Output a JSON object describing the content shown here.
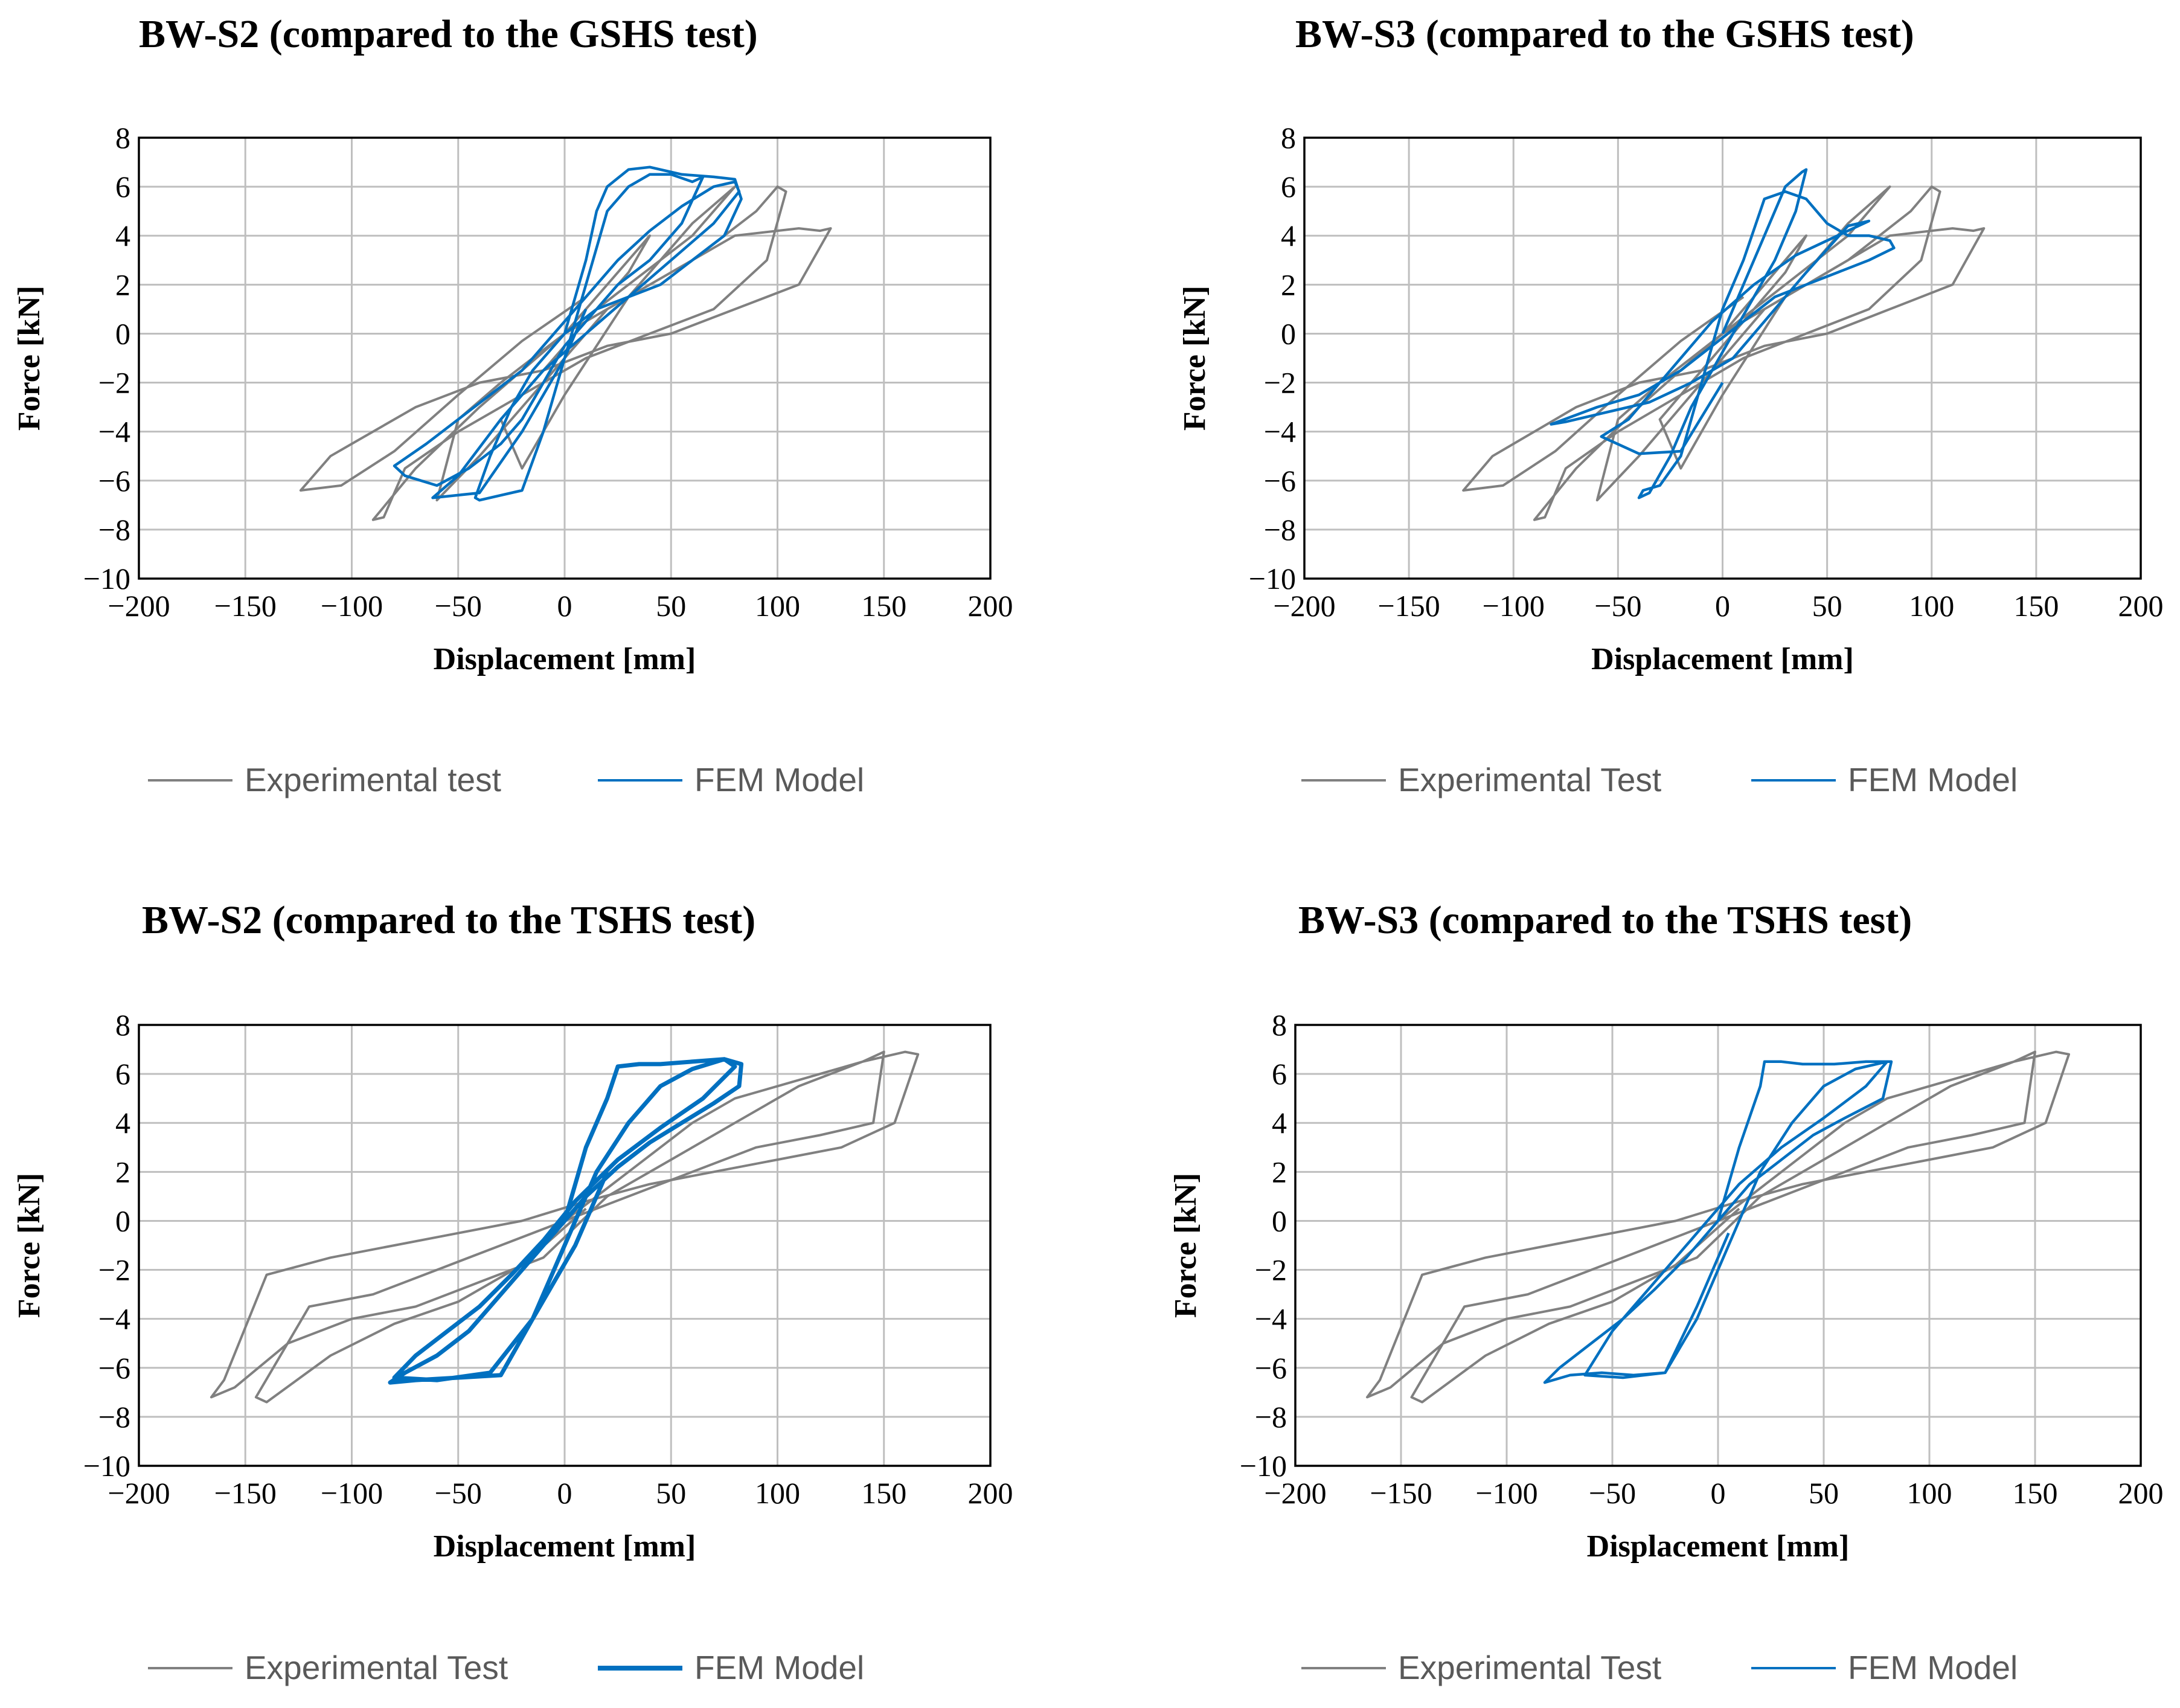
{
  "chart_data": [
    {
      "type": "line",
      "title": "BW-S2 (compared to the GSHS test)",
      "xlabel": "Displacement [mm]",
      "ylabel": "Force [kN]",
      "xlim": [
        -200,
        200
      ],
      "ylim": [
        -10,
        8
      ],
      "xticks": [
        "−200",
        "−150",
        "−100",
        "−50",
        "0",
        "50",
        "100",
        "150",
        "200"
      ],
      "yticks": [
        "8",
        "6",
        "4",
        "2",
        "0",
        "−2",
        "−4",
        "−6",
        "−8",
        "−10"
      ],
      "grid": true,
      "legend_position": "bottom",
      "series": [
        {
          "name": "Experimental test",
          "color": "#808080",
          "x": [
            0,
            20,
            40,
            30,
            10,
            -10,
            -30,
            -20,
            0,
            30,
            60,
            80,
            60,
            30,
            0,
            -30,
            -50,
            -60,
            -40,
            -10,
            20,
            60,
            90,
            100,
            104,
            95,
            70,
            40,
            10,
            -20,
            -50,
            -75,
            -85,
            -90,
            -70,
            -40,
            0,
            40,
            80,
            110,
            120,
            125,
            110,
            80,
            50,
            20,
            -10,
            -40,
            -70,
            -100,
            -110,
            -120,
            -124,
            -105,
            -80,
            -50,
            -20,
            10
          ],
          "y": [
            0,
            2,
            4,
            2.5,
            0.5,
            -1.5,
            -3.5,
            -5.5,
            -2.5,
            1.5,
            4.5,
            6,
            4,
            2,
            0,
            -2,
            -3.5,
            -6.8,
            -5,
            -2,
            1,
            3,
            5,
            6,
            5.8,
            3,
            1,
            0,
            -1,
            -2.5,
            -4,
            -5.5,
            -7.5,
            -7.6,
            -5.5,
            -3,
            0,
            2,
            4,
            4.3,
            4.2,
            4.3,
            2,
            1,
            0,
            -0.5,
            -1.5,
            -2,
            -3,
            -4.5,
            -5,
            -6,
            -6.4,
            -6.2,
            -4.8,
            -2.5,
            -0.3,
            1.5
          ]
        },
        {
          "name": "FEM Model",
          "color": "#0070c0",
          "x": [
            0,
            10,
            15,
            20,
            30,
            40,
            55,
            70,
            80,
            83,
            75,
            60,
            45,
            30,
            15,
            0,
            -15,
            -25,
            -35,
            -42,
            -40,
            -30,
            -20,
            -10,
            0,
            10,
            20,
            30,
            40,
            50,
            60,
            65,
            55,
            40,
            25,
            10,
            0,
            -10,
            -20,
            -30,
            -45,
            -60,
            -75,
            -80,
            -65,
            -50,
            -35,
            -20,
            -5,
            10,
            25,
            40,
            55,
            70,
            80,
            82,
            70,
            50,
            30,
            10,
            -10,
            -30,
            -50,
            -62,
            -40,
            -20,
            0,
            10
          ],
          "y": [
            0,
            3,
            5,
            6,
            6.7,
            6.8,
            6.5,
            6.4,
            6.3,
            5.5,
            4,
            3,
            2,
            1.5,
            1,
            0,
            -1.5,
            -3,
            -5,
            -6.7,
            -6.8,
            -6.6,
            -6.4,
            -4,
            -1,
            2,
            5,
            6,
            6.5,
            6.5,
            6.2,
            6.4,
            4.5,
            3,
            2,
            0.5,
            -0.5,
            -2,
            -3.5,
            -4.5,
            -5.5,
            -6.2,
            -5.8,
            -5.4,
            -4.5,
            -3.5,
            -2.5,
            -1.5,
            0,
            1.5,
            3,
            4.2,
            5.2,
            6,
            6.2,
            5.8,
            4.5,
            3,
            1.5,
            0,
            -1.5,
            -3.5,
            -5.8,
            -6.7,
            -6.5,
            -4,
            -1,
            1
          ]
        }
      ]
    },
    {
      "type": "line",
      "title": "BW-S3 (compared to the GSHS test)",
      "xlabel": "Displacement [mm]",
      "ylabel": "Force [kN]",
      "xlim": [
        -200,
        200
      ],
      "ylim": [
        -10,
        8
      ],
      "xticks": [
        "−200",
        "−150",
        "−100",
        "−50",
        "0",
        "50",
        "100",
        "150",
        "200"
      ],
      "yticks": [
        "8",
        "6",
        "4",
        "2",
        "0",
        "−2",
        "−4",
        "−6",
        "−8",
        "−10"
      ],
      "grid": true,
      "legend_position": "bottom",
      "series": [
        {
          "name": "Experimental Test",
          "color": "#808080",
          "x": [
            0,
            20,
            40,
            30,
            10,
            -10,
            -30,
            -20,
            0,
            30,
            60,
            80,
            60,
            30,
            0,
            -30,
            -50,
            -60,
            -40,
            -10,
            20,
            60,
            90,
            100,
            104,
            95,
            70,
            40,
            10,
            -20,
            -50,
            -75,
            -85,
            -90,
            -70,
            -40,
            0,
            40,
            80,
            110,
            120,
            125,
            110,
            80,
            50,
            20,
            -10,
            -40,
            -70,
            -100,
            -110,
            -120,
            -124,
            -105,
            -80,
            -50,
            -20,
            10
          ],
          "y": [
            0,
            2,
            4,
            2.5,
            0.5,
            -1.5,
            -3.5,
            -5.5,
            -2.5,
            1.5,
            4.5,
            6,
            4,
            2,
            0,
            -2,
            -3.5,
            -6.8,
            -5,
            -2,
            1,
            3,
            5,
            6,
            5.8,
            3,
            1,
            0,
            -1,
            -2.5,
            -4,
            -5.5,
            -7.5,
            -7.6,
            -5.5,
            -3,
            0,
            2,
            4,
            4.3,
            4.2,
            4.3,
            2,
            1,
            0,
            -0.5,
            -1.5,
            -2,
            -3,
            -4.5,
            -5,
            -6,
            -6.4,
            -6.2,
            -4.8,
            -2.5,
            -0.3,
            1.5
          ]
        },
        {
          "name": "FEM Model",
          "color": "#0070c0",
          "x": [
            0,
            10,
            20,
            30,
            38,
            40,
            35,
            25,
            15,
            5,
            -5,
            -15,
            -25,
            -35,
            -40,
            -38,
            -30,
            -20,
            -10,
            0,
            10,
            20,
            30,
            40,
            50,
            60,
            70,
            80,
            82,
            70,
            55,
            40,
            25,
            10,
            -5,
            -20,
            -40,
            -60,
            -82,
            -75,
            -55,
            -35,
            -15,
            5,
            20,
            40,
            60,
            70,
            55,
            35,
            15,
            -5,
            -25,
            -45,
            -58,
            -40,
            -20,
            0
          ],
          "y": [
            0,
            2,
            4,
            6,
            6.6,
            6.7,
            5,
            3,
            1.5,
            0,
            -1.5,
            -3,
            -5,
            -6.5,
            -6.7,
            -6.4,
            -6.2,
            -5,
            -2,
            1,
            3,
            5.5,
            5.8,
            5.5,
            4.5,
            4,
            4,
            3.8,
            3.5,
            3,
            2.5,
            2,
            1.5,
            0.5,
            -0.5,
            -1.5,
            -2.5,
            -3,
            -3.7,
            -3.6,
            -3.2,
            -2.8,
            -2,
            -1,
            0.5,
            2.5,
            4.4,
            4.6,
            4,
            3.2,
            2,
            0.5,
            -1.5,
            -3.5,
            -4.2,
            -4.9,
            -4.8,
            -2
          ]
        }
      ]
    },
    {
      "type": "line",
      "title": "BW-S2 (compared to the TSHS test)",
      "xlabel": "Displacement [mm]",
      "ylabel": "Force [kN]",
      "xlim": [
        -200,
        200
      ],
      "ylim": [
        -10,
        8
      ],
      "xticks": [
        "−200",
        "−150",
        "−100",
        "−50",
        "0",
        "50",
        "100",
        "150",
        "200"
      ],
      "yticks": [
        "8",
        "6",
        "4",
        "2",
        "0",
        "−2",
        "−4",
        "−6",
        "−8",
        "−10"
      ],
      "grid": true,
      "legend_position": "bottom",
      "series": [
        {
          "name": "Experimental Test",
          "color": "#808080",
          "x": [
            0,
            30,
            60,
            80,
            100,
            120,
            140,
            160,
            166,
            155,
            130,
            100,
            70,
            40,
            10,
            -20,
            -50,
            -80,
            -110,
            -140,
            -160,
            -166,
            -155,
            -130,
            -100,
            -70,
            -40,
            -10,
            20,
            50,
            80,
            110,
            140,
            150,
            145,
            120,
            90,
            60,
            30,
            0,
            -30,
            -60,
            -90,
            -120,
            -145,
            -140,
            -110,
            -80,
            -50,
            -20,
            10
          ],
          "y": [
            0,
            2,
            4,
            5,
            5.5,
            6,
            6.5,
            6.9,
            6.8,
            4,
            3,
            2.5,
            2,
            1.5,
            0.8,
            0,
            -0.5,
            -1,
            -1.5,
            -2.2,
            -6.5,
            -7.2,
            -6.8,
            -5,
            -4,
            -3.5,
            -2.5,
            -1.5,
            1,
            2.5,
            4,
            5.5,
            6.5,
            6.9,
            4,
            3.5,
            3,
            2,
            1,
            0,
            -1,
            -2,
            -3,
            -3.5,
            -7.2,
            -7.4,
            -5.5,
            -4.2,
            -3.3,
            -1.8,
            0.5
          ]
        },
        {
          "name": "FEM Model",
          "color": "#0070c0",
          "x": [
            0,
            10,
            20,
            25,
            35,
            45,
            60,
            75,
            83,
            82,
            70,
            55,
            40,
            25,
            10,
            0,
            -15,
            -30,
            -45,
            -60,
            -75,
            -82,
            -70,
            -50,
            -30,
            -15,
            0,
            15,
            30,
            45,
            60,
            75,
            80,
            65,
            45,
            25,
            5,
            -10,
            -25,
            -40,
            -55,
            -70,
            -80,
            -60,
            -35,
            -15,
            5,
            20
          ],
          "y": [
            0,
            3,
            5,
            6.3,
            6.4,
            6.4,
            6.5,
            6.6,
            6.4,
            5.5,
            4.8,
            4,
            3.2,
            2.2,
            1,
            0,
            -1.5,
            -3,
            -4.5,
            -5.5,
            -6.2,
            -6.6,
            -6.5,
            -6.4,
            -6.3,
            -4,
            -1,
            2,
            4,
            5.5,
            6.2,
            6.6,
            6.3,
            5,
            3.8,
            2.5,
            0.8,
            -0.8,
            -2.2,
            -3.5,
            -4.5,
            -5.5,
            -6.4,
            -6.5,
            -6.2,
            -4,
            -1,
            2
          ]
        }
      ]
    },
    {
      "type": "line",
      "title": "BW-S3 (compared to the TSHS test)",
      "xlabel": "Displacement [mm]",
      "ylabel": "Force [kN]",
      "xlim": [
        -200,
        200
      ],
      "ylim": [
        -10,
        8
      ],
      "xticks": [
        "−200",
        "−150",
        "−100",
        "−50",
        "0",
        "50",
        "100",
        "150",
        "200"
      ],
      "yticks": [
        "8",
        "6",
        "4",
        "2",
        "0",
        "−2",
        "−4",
        "−6",
        "−8",
        "−10"
      ],
      "grid": true,
      "legend_position": "bottom",
      "series": [
        {
          "name": "Experimental Test",
          "color": "#808080",
          "x": [
            0,
            30,
            60,
            80,
            100,
            120,
            140,
            160,
            166,
            155,
            130,
            100,
            70,
            40,
            10,
            -20,
            -50,
            -80,
            -110,
            -140,
            -160,
            -166,
            -155,
            -130,
            -100,
            -70,
            -40,
            -10,
            20,
            50,
            80,
            110,
            140,
            150,
            145,
            120,
            90,
            60,
            30,
            0,
            -30,
            -60,
            -90,
            -120,
            -145,
            -140,
            -110,
            -80,
            -50,
            -20,
            10
          ],
          "y": [
            0,
            2,
            4,
            5,
            5.5,
            6,
            6.5,
            6.9,
            6.8,
            4,
            3,
            2.5,
            2,
            1.5,
            0.8,
            0,
            -0.5,
            -1,
            -1.5,
            -2.2,
            -6.5,
            -7.2,
            -6.8,
            -5,
            -4,
            -3.5,
            -2.5,
            -1.5,
            1,
            2.5,
            4,
            5.5,
            6.5,
            6.9,
            4,
            3.5,
            3,
            2,
            1,
            0,
            -1,
            -2,
            -3,
            -3.5,
            -7.2,
            -7.4,
            -5.5,
            -4.2,
            -3.3,
            -1.8,
            0.5
          ]
        },
        {
          "name": "FEM Model",
          "color": "#0070c0",
          "x": [
            0,
            10,
            20,
            22,
            30,
            40,
            55,
            70,
            82,
            78,
            60,
            45,
            30,
            15,
            0,
            -15,
            -30,
            -45,
            -60,
            -75,
            -82,
            -70,
            -55,
            -40,
            -25,
            -10,
            5,
            20,
            35,
            50,
            65,
            80,
            70,
            50,
            30,
            10,
            -5,
            -20,
            -35,
            -50,
            -63,
            -45,
            -25,
            -10,
            5
          ],
          "y": [
            0,
            3,
            5.5,
            6.5,
            6.5,
            6.4,
            6.4,
            6.5,
            6.5,
            5,
            4.2,
            3.5,
            2.5,
            1.5,
            0,
            -1.5,
            -2.8,
            -4,
            -5,
            -6,
            -6.6,
            -6.3,
            -6.2,
            -6.3,
            -6.2,
            -4,
            -1,
            2,
            4,
            5.5,
            6.2,
            6.5,
            5.5,
            4.2,
            3,
            1.5,
            0,
            -1.5,
            -3,
            -4.5,
            -6.3,
            -6.4,
            -6.2,
            -3.5,
            -0.5
          ]
        }
      ]
    }
  ]
}
